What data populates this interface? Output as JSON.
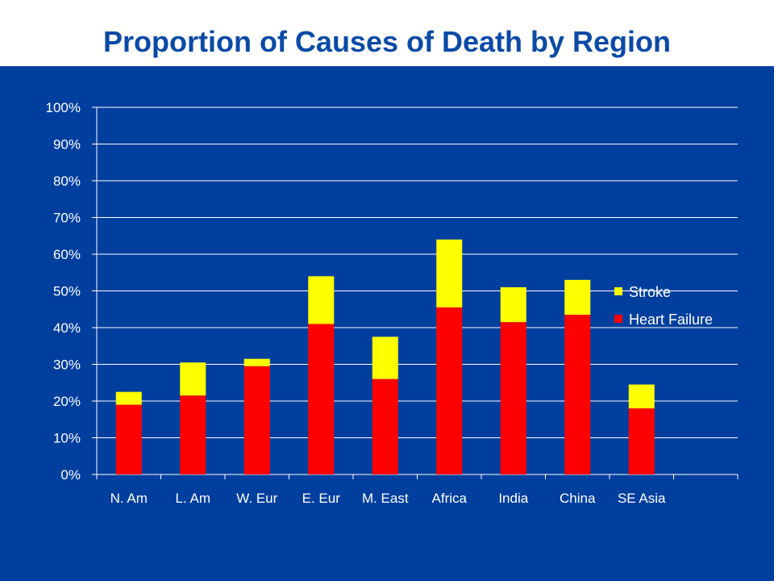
{
  "title": "Proportion of Causes of Death by Region",
  "colors": {
    "background": "#003f9e",
    "title": "#0b4aa6",
    "stroke": "#ffff00",
    "heart_failure": "#ff0000",
    "grid": "#ffffff"
  },
  "chart_data": {
    "type": "bar",
    "stacked": true,
    "title": "Proportion of Causes of Death by Region",
    "categories": [
      "N. Am",
      "L. Am",
      "W. Eur",
      "E. Eur",
      "M. East",
      "Africa",
      "India",
      "China",
      "SE Asia"
    ],
    "series": [
      {
        "name": "Heart Failure",
        "color": "#ff0000",
        "values": [
          19,
          21.5,
          29.5,
          41,
          26,
          45.5,
          41.5,
          43.5,
          18
        ]
      },
      {
        "name": "Stroke",
        "color": "#ffff00",
        "values": [
          3.5,
          9,
          2,
          13,
          11.5,
          18.5,
          9.5,
          9.5,
          6.5
        ]
      }
    ],
    "ylim": [
      0,
      100
    ],
    "yticks": [
      "0%",
      "10%",
      "20%",
      "30%",
      "40%",
      "50%",
      "60%",
      "70%",
      "80%",
      "90%",
      "100%"
    ],
    "xlabel": "",
    "ylabel": "",
    "grid": true,
    "legend": {
      "position": "right",
      "entries": [
        "Stroke",
        "Heart Failure"
      ]
    }
  }
}
